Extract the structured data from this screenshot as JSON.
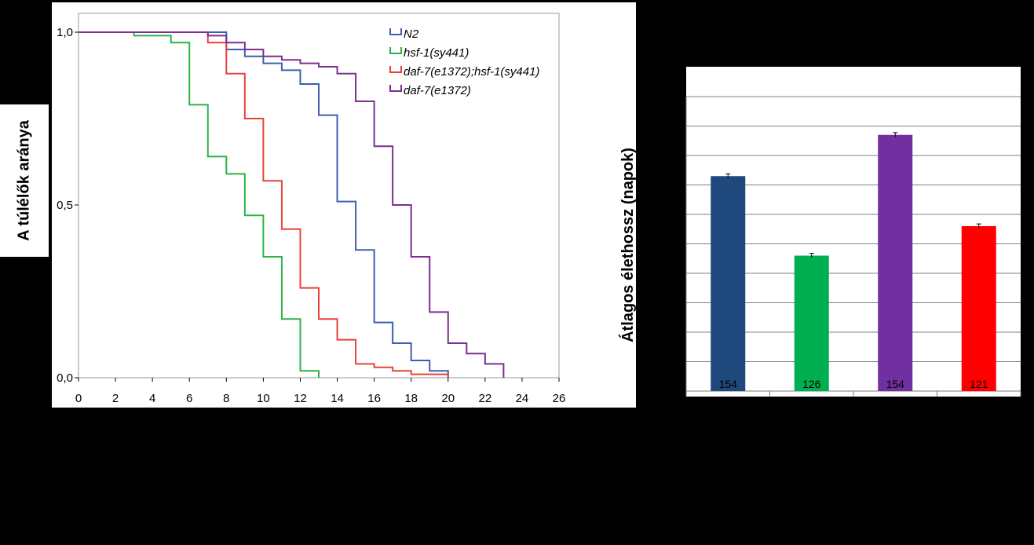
{
  "chart_data": [
    {
      "type": "line",
      "subtype": "kaplan-meier",
      "ylabel": "A túlélők aránya",
      "xlabel": "",
      "xlim": [
        0,
        26
      ],
      "ylim": [
        0,
        1
      ],
      "x_ticks": [
        "0",
        "2",
        "4",
        "6",
        "8",
        "10",
        "12",
        "14",
        "16",
        "18",
        "20",
        "22",
        "24",
        "26"
      ],
      "y_ticks": [
        "0,0",
        "0,5",
        "1,0"
      ],
      "legend_position": "top-right",
      "series": [
        {
          "name": "N2",
          "color": "#3d5fb0",
          "steps": [
            [
              0,
              1.0
            ],
            [
              8,
              0.95
            ],
            [
              9,
              0.93
            ],
            [
              10,
              0.91
            ],
            [
              11,
              0.89
            ],
            [
              12,
              0.85
            ],
            [
              13,
              0.76
            ],
            [
              14,
              0.51
            ],
            [
              15,
              0.37
            ],
            [
              16,
              0.16
            ],
            [
              17,
              0.1
            ],
            [
              18,
              0.05
            ],
            [
              19,
              0.02
            ],
            [
              20,
              0.0
            ]
          ]
        },
        {
          "name": "hsf-1(sy441)",
          "color": "#2db34a",
          "steps": [
            [
              0,
              1.0
            ],
            [
              3,
              0.99
            ],
            [
              5,
              0.97
            ],
            [
              6,
              0.79
            ],
            [
              7,
              0.64
            ],
            [
              8,
              0.59
            ],
            [
              9,
              0.47
            ],
            [
              10,
              0.35
            ],
            [
              11,
              0.17
            ],
            [
              12,
              0.02
            ],
            [
              13,
              0.0
            ]
          ]
        },
        {
          "name": "daf-7(e1372);hsf-1(sy441)",
          "color": "#e8413a",
          "steps": [
            [
              0,
              1.0
            ],
            [
              7,
              0.97
            ],
            [
              8,
              0.88
            ],
            [
              9,
              0.75
            ],
            [
              10,
              0.57
            ],
            [
              11,
              0.43
            ],
            [
              12,
              0.26
            ],
            [
              13,
              0.17
            ],
            [
              14,
              0.11
            ],
            [
              15,
              0.04
            ],
            [
              16,
              0.03
            ],
            [
              17,
              0.02
            ],
            [
              18,
              0.01
            ],
            [
              20,
              0.0
            ]
          ]
        },
        {
          "name": "daf-7(e1372)",
          "color": "#7b2f8e",
          "steps": [
            [
              0,
              1.0
            ],
            [
              7,
              0.99
            ],
            [
              8,
              0.97
            ],
            [
              9,
              0.95
            ],
            [
              10,
              0.93
            ],
            [
              11,
              0.92
            ],
            [
              12,
              0.91
            ],
            [
              13,
              0.9
            ],
            [
              14,
              0.88
            ],
            [
              15,
              0.8
            ],
            [
              16,
              0.67
            ],
            [
              17,
              0.5
            ],
            [
              18,
              0.35
            ],
            [
              19,
              0.19
            ],
            [
              20,
              0.1
            ],
            [
              21,
              0.07
            ],
            [
              22,
              0.04
            ],
            [
              23,
              0.0
            ]
          ]
        }
      ]
    },
    {
      "type": "bar",
      "ylabel": "Átlagos élethossz (napok)",
      "xlabel": "",
      "ylim": [
        0,
        10
      ],
      "grid": true,
      "bars": [
        {
          "value": 7.3,
          "error": 0.05,
          "color": "#1f497d",
          "label": "154"
        },
        {
          "value": 4.6,
          "error": 0.05,
          "color": "#00b050",
          "label": "126"
        },
        {
          "value": 8.7,
          "error": 0.05,
          "color": "#7030a0",
          "label": "154"
        },
        {
          "value": 5.6,
          "error": 0.05,
          "color": "#ff0000",
          "label": "121"
        }
      ]
    }
  ]
}
